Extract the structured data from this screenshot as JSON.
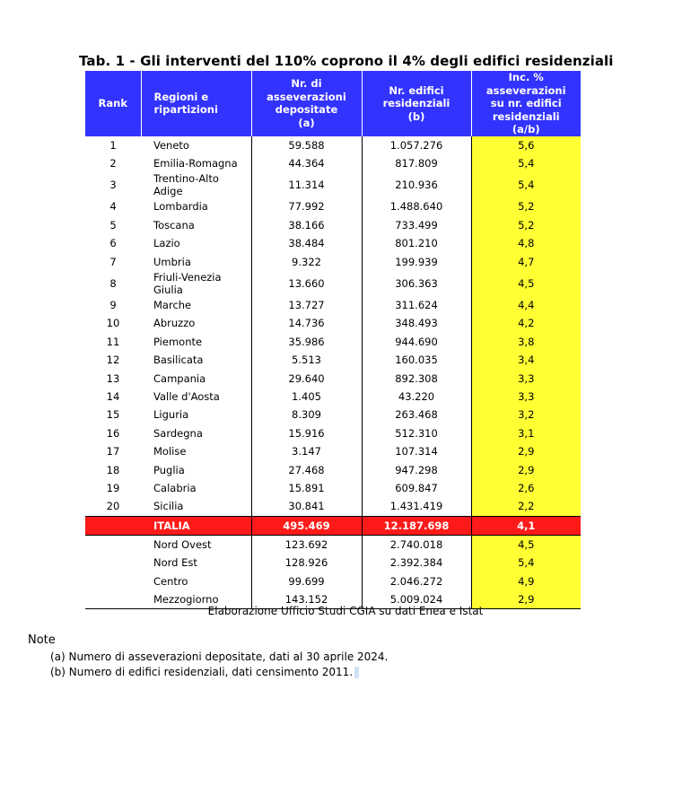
{
  "title": "Tab. 1 - Gli interventi del 110% coprono il 4% degli edifici residenziali",
  "headers": {
    "rank": "Rank",
    "region": [
      "Regioni e",
      "ripartizioni"
    ],
    "asseverazioni": [
      "Nr. di",
      "asseverazioni",
      "depositate",
      "(a)"
    ],
    "edifici": [
      "Nr. edifici",
      "residenziali",
      "(b)"
    ],
    "incidenza": [
      "Inc. % asseverazioni",
      "su nr. edifici",
      "residenziali",
      "(a/b)"
    ]
  },
  "rows": [
    {
      "rank": "1",
      "region": "Veneto",
      "asseverazioni": "59.588",
      "edifici": "1.057.276",
      "incidenza": "5,6"
    },
    {
      "rank": "2",
      "region": "Emilia-Romagna",
      "asseverazioni": "44.364",
      "edifici": "817.809",
      "incidenza": "5,4"
    },
    {
      "rank": "3",
      "region": "Trentino-Alto Adige",
      "asseverazioni": "11.314",
      "edifici": "210.936",
      "incidenza": "5,4"
    },
    {
      "rank": "4",
      "region": "Lombardia",
      "asseverazioni": "77.992",
      "edifici": "1.488.640",
      "incidenza": "5,2"
    },
    {
      "rank": "5",
      "region": "Toscana",
      "asseverazioni": "38.166",
      "edifici": "733.499",
      "incidenza": "5,2"
    },
    {
      "rank": "6",
      "region": "Lazio",
      "asseverazioni": "38.484",
      "edifici": "801.210",
      "incidenza": "4,8"
    },
    {
      "rank": "7",
      "region": "Umbria",
      "asseverazioni": "9.322",
      "edifici": "199.939",
      "incidenza": "4,7"
    },
    {
      "rank": "8",
      "region": "Friuli-Venezia Giulia",
      "asseverazioni": "13.660",
      "edifici": "306.363",
      "incidenza": "4,5"
    },
    {
      "rank": "9",
      "region": "Marche",
      "asseverazioni": "13.727",
      "edifici": "311.624",
      "incidenza": "4,4"
    },
    {
      "rank": "10",
      "region": "Abruzzo",
      "asseverazioni": "14.736",
      "edifici": "348.493",
      "incidenza": "4,2"
    },
    {
      "rank": "11",
      "region": "Piemonte",
      "asseverazioni": "35.986",
      "edifici": "944.690",
      "incidenza": "3,8"
    },
    {
      "rank": "12",
      "region": "Basilicata",
      "asseverazioni": "5.513",
      "edifici": "160.035",
      "incidenza": "3,4"
    },
    {
      "rank": "13",
      "region": "Campania",
      "asseverazioni": "29.640",
      "edifici": "892.308",
      "incidenza": "3,3"
    },
    {
      "rank": "14",
      "region": "Valle d'Aosta",
      "asseverazioni": "1.405",
      "edifici": "43.220",
      "incidenza": "3,3"
    },
    {
      "rank": "15",
      "region": "Liguria",
      "asseverazioni": "8.309",
      "edifici": "263.468",
      "incidenza": "3,2"
    },
    {
      "rank": "16",
      "region": "Sardegna",
      "asseverazioni": "15.916",
      "edifici": "512.310",
      "incidenza": "3,1"
    },
    {
      "rank": "17",
      "region": "Molise",
      "asseverazioni": "3.147",
      "edifici": "107.314",
      "incidenza": "2,9"
    },
    {
      "rank": "18",
      "region": "Puglia",
      "asseverazioni": "27.468",
      "edifici": "947.298",
      "incidenza": "2,9"
    },
    {
      "rank": "19",
      "region": "Calabria",
      "asseverazioni": "15.891",
      "edifici": "609.847",
      "incidenza": "2,6"
    },
    {
      "rank": "20",
      "region": "Sicilia",
      "asseverazioni": "30.841",
      "edifici": "1.431.419",
      "incidenza": "2,2"
    }
  ],
  "total": {
    "rank": "",
    "region": "ITALIA",
    "asseverazioni": "495.469",
    "edifici": "12.187.698",
    "incidenza": "4,1"
  },
  "areas": [
    {
      "rank": "",
      "region": "Nord Ovest",
      "asseverazioni": "123.692",
      "edifici": "2.740.018",
      "incidenza": "4,5"
    },
    {
      "rank": "",
      "region": "Nord Est",
      "asseverazioni": "128.926",
      "edifici": "2.392.384",
      "incidenza": "5,4"
    },
    {
      "rank": "",
      "region": "Centro",
      "asseverazioni": "99.699",
      "edifici": "2.046.272",
      "incidenza": "4,9"
    },
    {
      "rank": "",
      "region": "Mezzogiorno",
      "asseverazioni": "143.152",
      "edifici": "5.009.024",
      "incidenza": "2,9"
    }
  ],
  "source": "Elaborazione Ufficio Studi CGIA su dati Enea e Istat",
  "notes": {
    "title": "Note",
    "items": [
      "(a)  Numero di asseverazioni depositate, dati al 30 aprile 2024.",
      "(b)  Numero di edifici residenziali, dati censimento 2011."
    ]
  },
  "colors": {
    "header": "#3333ff",
    "highlight": "#ffff33",
    "total": "#ff1a1a"
  }
}
